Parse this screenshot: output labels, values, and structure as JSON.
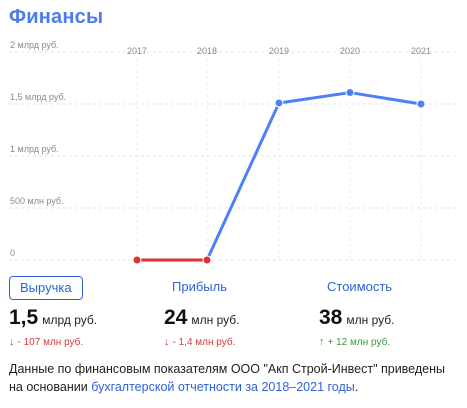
{
  "header": {
    "title": "Финансы"
  },
  "chart_data": {
    "type": "line",
    "title": "",
    "xlabel": "",
    "ylabel": "",
    "categories": [
      "2017",
      "2018",
      "2019",
      "2020",
      "2021"
    ],
    "y_tick_labels": [
      "2 млрд руб.",
      "1,5 млрд руб.",
      "1 млрд руб.",
      "500 млн руб.",
      "0"
    ],
    "y_tick_values": [
      2000,
      1500,
      1000,
      500,
      0
    ],
    "ylim": [
      0,
      2000
    ],
    "y_unit": "млн руб.",
    "grid": true,
    "series": [
      {
        "values": [
          0,
          0,
          1510,
          1610,
          1500
        ],
        "color": "#4f7ff7",
        "low_segment_color": "#e03232"
      }
    ]
  },
  "tabs": [
    {
      "label": "Выручка",
      "active": true
    },
    {
      "label": "Прибыль",
      "active": false
    },
    {
      "label": "Стоимость",
      "active": false
    }
  ],
  "metrics": [
    {
      "value": "1,5",
      "unit": "млрд руб.",
      "arrow": "↓",
      "delta": "- 107 млн руб.",
      "trend": "down"
    },
    {
      "value": "24",
      "unit": "млн руб.",
      "arrow": "↓",
      "delta": "- 1,4 млн руб.",
      "trend": "down"
    },
    {
      "value": "38",
      "unit": "млн руб.",
      "arrow": "↑",
      "delta": "+ 12 млн руб.",
      "trend": "up"
    }
  ],
  "note": {
    "text": "Данные по финансовым показателям ООО \"Акп Строй-Инвест\" приведены на основании ",
    "link": "бухгалтерской отчетности за 2018–2021 годы",
    "end": "."
  },
  "colors": {
    "accent": "#4a7cf0",
    "line": "#4f7ff7",
    "negative": "#d63a3a",
    "positive": "#3c9a3c"
  }
}
